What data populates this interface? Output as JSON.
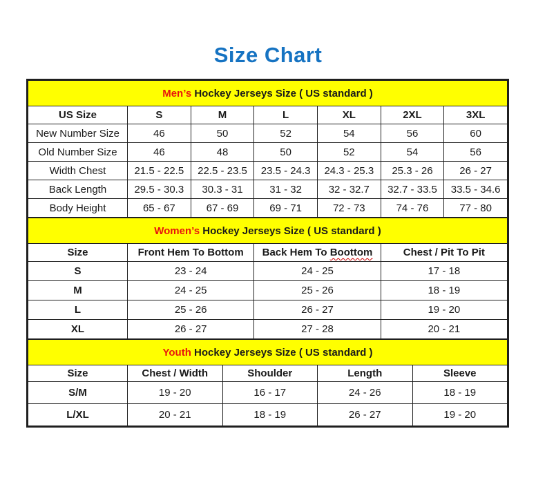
{
  "title": "Size Chart",
  "colors": {
    "title_blue": "#1673c2",
    "band_yellow": "#ffff00",
    "accent_red": "#e8150d",
    "text_black": "#1a1a1a",
    "border_black": "#1f1f1f"
  },
  "sections": [
    {
      "id": "mens",
      "band": {
        "highlight": "Men’s",
        "rest": " Hockey Jerseys Size ( US standard )"
      },
      "header": [
        "US Size",
        "S",
        "M",
        "L",
        "XL",
        "2XL",
        "3XL"
      ],
      "rows": [
        [
          "New Number Size",
          "46",
          "50",
          "52",
          "54",
          "56",
          "60"
        ],
        [
          "Old Number Size",
          "46",
          "48",
          "50",
          "52",
          "54",
          "56"
        ],
        [
          "Width Chest",
          "21.5 - 22.5",
          "22.5 - 23.5",
          "23.5 - 24.3",
          "24.3 - 25.3",
          "25.3 - 26",
          "26 - 27"
        ],
        [
          "Back Length",
          "29.5 - 30.3",
          "30.3 - 31",
          "31 - 32",
          "32 - 32.7",
          "32.7 - 33.5",
          "33.5 - 34.6"
        ],
        [
          "Body Height",
          "65 - 67",
          "67 - 69",
          "69 - 71",
          "72 - 73",
          "74 - 76",
          "77 - 80"
        ]
      ],
      "row_label_bold": false
    },
    {
      "id": "womens",
      "band": {
        "highlight": "Women’s",
        "rest": " Hockey Jerseys Size ( US standard )"
      },
      "header": [
        "Size",
        "Front Hem To Bottom",
        "Back Hem To Boottom",
        "Chest / Pit To Pit"
      ],
      "squiggle": {
        "col": 2,
        "prefix": "Back Hem To ",
        "word": "Boottom"
      },
      "rows": [
        [
          "S",
          "23 - 24",
          "24 - 25",
          "17 - 18"
        ],
        [
          "M",
          "24 - 25",
          "25 - 26",
          "18 - 19"
        ],
        [
          "L",
          "25 - 26",
          "26 - 27",
          "19 - 20"
        ],
        [
          "XL",
          "26 - 27",
          "27 - 28",
          "20 - 21"
        ]
      ],
      "row_label_bold": true
    },
    {
      "id": "youth",
      "band": {
        "highlight": "Youth",
        "rest": " Hockey Jerseys Size ( US standard )"
      },
      "header": [
        "Size",
        "Chest / Width",
        "Shoulder",
        "Length",
        "Sleeve"
      ],
      "rows": [
        [
          "S/M",
          "19 - 20",
          "16 - 17",
          "24 - 26",
          "18 - 19"
        ],
        [
          "L/XL",
          "20 - 21",
          "18 - 19",
          "26 - 27",
          "19 - 20"
        ]
      ],
      "row_label_bold": true
    }
  ]
}
